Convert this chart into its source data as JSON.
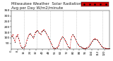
{
  "title": "Milwaukee Weather  Solar Radiation\nAvg per Day W/m2/minute",
  "title_fontsize": 4.0,
  "bg_color": "#ffffff",
  "plot_bg_color": "#ffffff",
  "line_color": "#cc0000",
  "dot_color": "#cc0000",
  "alt_dot_color": "#000000",
  "legend_box_color": "#cc0000",
  "grid_color": "#b0b0b0",
  "ylim": [
    0,
    350
  ],
  "yticks": [
    50,
    100,
    150,
    200,
    250,
    300,
    350
  ],
  "ytick_fontsize": 3.2,
  "xtick_fontsize": 2.8,
  "y_values": [
    120,
    110,
    130,
    100,
    80,
    60,
    110,
    120,
    130,
    100,
    80,
    55,
    30,
    15,
    10,
    8,
    12,
    20,
    35,
    55,
    80,
    100,
    120,
    130,
    140,
    135,
    125,
    110,
    100,
    115,
    130,
    150,
    160,
    165,
    170,
    155,
    145,
    140,
    130,
    160,
    165,
    170,
    175,
    165,
    155,
    145,
    130,
    115,
    100,
    85,
    70,
    55,
    40,
    25,
    10,
    8,
    6,
    5,
    8,
    12,
    20,
    35,
    55,
    75,
    90,
    100,
    110,
    105,
    95,
    80,
    65,
    55,
    40,
    25,
    15,
    10,
    8,
    90,
    110,
    130,
    120,
    115,
    100,
    85,
    70,
    55,
    45,
    35,
    25,
    20,
    15,
    10,
    8,
    6,
    5,
    4,
    6,
    8,
    12,
    18,
    25,
    35,
    45,
    55,
    65,
    75,
    85,
    90,
    95,
    90,
    85,
    80,
    70,
    60,
    50,
    40,
    30,
    20,
    15,
    10,
    8,
    6,
    5,
    4,
    3,
    2,
    2,
    2
  ],
  "vline_positions": [
    16,
    33,
    50,
    67,
    84,
    101,
    118
  ],
  "num_points": 128
}
